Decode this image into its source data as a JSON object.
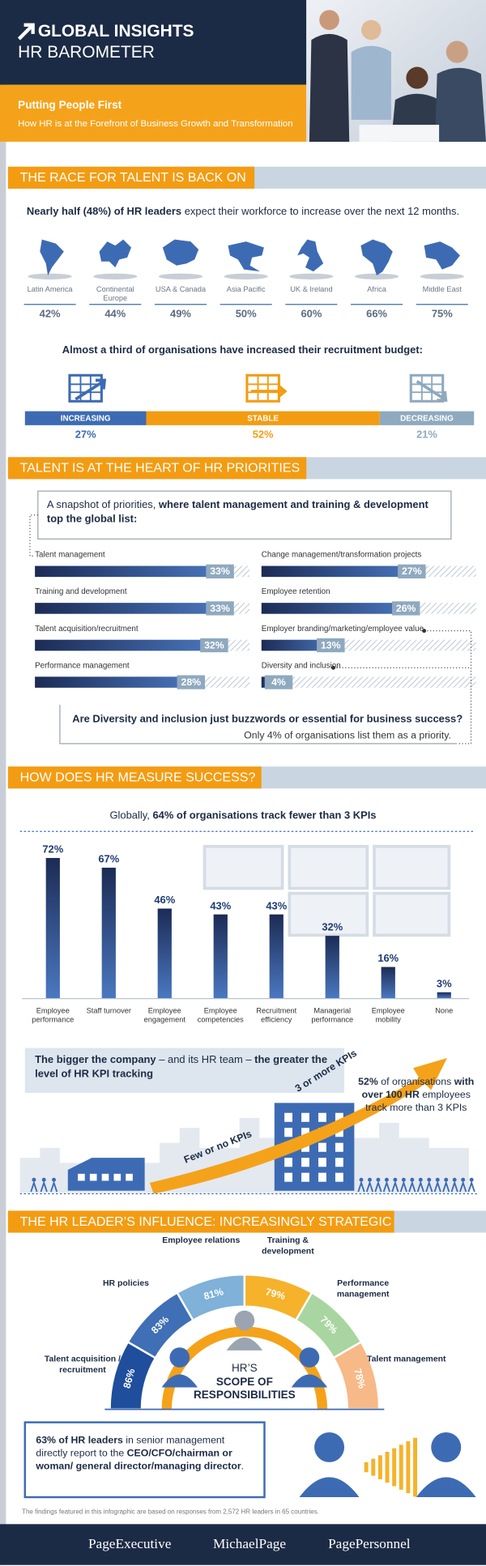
{
  "header": {
    "title": "GLOBAL INSIGHTS",
    "subtitle": "HR BAROMETER",
    "tagline": "Putting People First",
    "description": "How HR is at the Forefront of Business Growth and Transformation"
  },
  "race": {
    "heading": "THE RACE FOR TALENT IS BACK ON",
    "intro_bold": "Nearly half (48%) of HR leaders",
    "intro_rest": " expect their workforce to increase over the next 12 months.",
    "regions": {
      "categories": [
        "Latin America",
        "Continental Europe",
        "USA & Canada",
        "Asia Pacific",
        "UK & Ireland",
        "Africa",
        "Middle East"
      ],
      "values": [
        42,
        44,
        49,
        50,
        60,
        66,
        75
      ],
      "value_labels": [
        "42%",
        "44%",
        "49%",
        "50%",
        "60%",
        "66%",
        "75%"
      ],
      "color": "#3d6bb3"
    },
    "budget_heading": "Almost a third of organisations have increased their recruitment budget:",
    "budget": {
      "categories": [
        "INCREASING",
        "STABLE",
        "DECREASING"
      ],
      "values": [
        27,
        52,
        21
      ],
      "value_labels": [
        "27%",
        "52%",
        "21%"
      ],
      "colors": [
        "#3d6bb3",
        "#f39c12",
        "#8fa9bf"
      ]
    }
  },
  "priorities": {
    "heading": "TALENT IS AT THE HEART OF HR PRIORITIES",
    "intro_plain": "A snapshot of priorities, ",
    "intro_bold": "where talent management and training & development top the global list:",
    "items": {
      "categories": [
        "Talent management",
        "Training and development",
        "Talent acquisition/recruitment",
        "Performance management",
        "Change management/transformation projects",
        "Employee retention",
        "Employer branding/marketing/employee value",
        "Diversity and inclusion"
      ],
      "values": [
        33,
        33,
        32,
        28,
        27,
        26,
        13,
        4
      ],
      "value_labels": [
        "33%",
        "33%",
        "32%",
        "28%",
        "27%",
        "26%",
        "13%",
        "4%"
      ]
    },
    "question": "Are Diversity and inclusion just buzzwords or essential for business success?",
    "answer": "Only 4% of organisations list them as a priority."
  },
  "kpi": {
    "heading": "HOW DOES HR MEASURE SUCCESS?",
    "intro_plain": "Globally, ",
    "intro_bold": "64% of organisations track fewer than 3 KPIs",
    "chart": {
      "type": "bar",
      "categories": [
        "Employee performance",
        "Staff turnover",
        "Employee engagement",
        "Employee competencies",
        "Recruitment efficiency",
        "Managerial performance",
        "Employee mobility",
        "None"
      ],
      "values": [
        72,
        67,
        46,
        43,
        43,
        32,
        16,
        3
      ],
      "value_labels": [
        "72%",
        "67%",
        "46%",
        "43%",
        "43%",
        "32%",
        "16%",
        "3%"
      ],
      "color": "#1f3b73"
    }
  },
  "company": {
    "text": [
      "The bigger the company",
      " – and its HR team – ",
      "the greater the level of HR KPI tracking"
    ],
    "arrow_low": "Few or no KPIs",
    "arrow_high": "3 or more KPIs",
    "stat": [
      "52%",
      " of organisations ",
      "with over 100 HR",
      " employees track more than 3 KPIs"
    ]
  },
  "influence": {
    "heading": "THE HR LEADER’S INFLUENCE: INCREASINGLY STRATEGIC",
    "center_top": "HR’S",
    "center_bold": "SCOPE OF RESPONSIBILITIES",
    "areas": {
      "categories": [
        "Talent acquisition / recruitment",
        "HR policies",
        "Employee relations",
        "Training & development",
        "Performance management",
        "Talent management"
      ],
      "values": [
        86,
        83,
        81,
        79,
        79,
        78
      ],
      "value_labels": [
        "86%",
        "83%",
        "81%",
        "79%",
        "79%",
        "78%"
      ],
      "colors": [
        "#1f4e9c",
        "#3f6fb5",
        "#7fb1d9",
        "#f5b22a",
        "#a8d5a0",
        "#f7b987"
      ]
    }
  },
  "reporting": {
    "bold": "63% of HR leaders",
    "plain": " in senior management directly report to the ",
    "bold2": "CEO/CFO/chairman or woman/ general director/managing director",
    "end": "."
  },
  "footnote": "The findings featured in this infographic are based on responses from 2,572 HR leaders in 65 countries.",
  "brands": [
    "PageExecutive",
    "MichaelPage",
    "PagePersonnel"
  ]
}
